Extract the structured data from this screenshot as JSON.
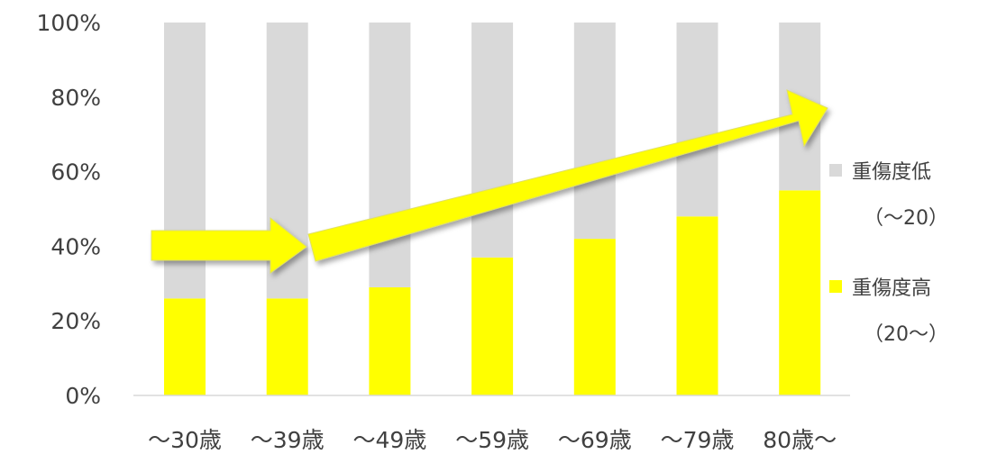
{
  "chart_data": {
    "type": "bar",
    "stacked": true,
    "categories": [
      "～30歳",
      "～39歳",
      "～49歳",
      "～59歳",
      "～69歳",
      "～79歳",
      "80歳～"
    ],
    "series": [
      {
        "name": "重傷度高",
        "name_line2": "（20～）",
        "color": "#ffff00",
        "values": [
          26,
          26,
          29,
          37,
          42,
          48,
          55
        ]
      },
      {
        "name": "重傷度低",
        "name_line2": "（～20）",
        "color": "#d9d9d9",
        "values": [
          74,
          74,
          71,
          63,
          58,
          52,
          45
        ]
      }
    ],
    "ylim": [
      0,
      100
    ],
    "yticks": [
      "0%",
      "20%",
      "40%",
      "60%",
      "80%",
      "100%"
    ],
    "ytick_values": [
      0,
      20,
      40,
      60,
      80,
      100
    ],
    "legend_position": "right",
    "grid": false,
    "annotation": "yellow arrows showing increasing trend",
    "arrow_color": "#ffff00"
  }
}
